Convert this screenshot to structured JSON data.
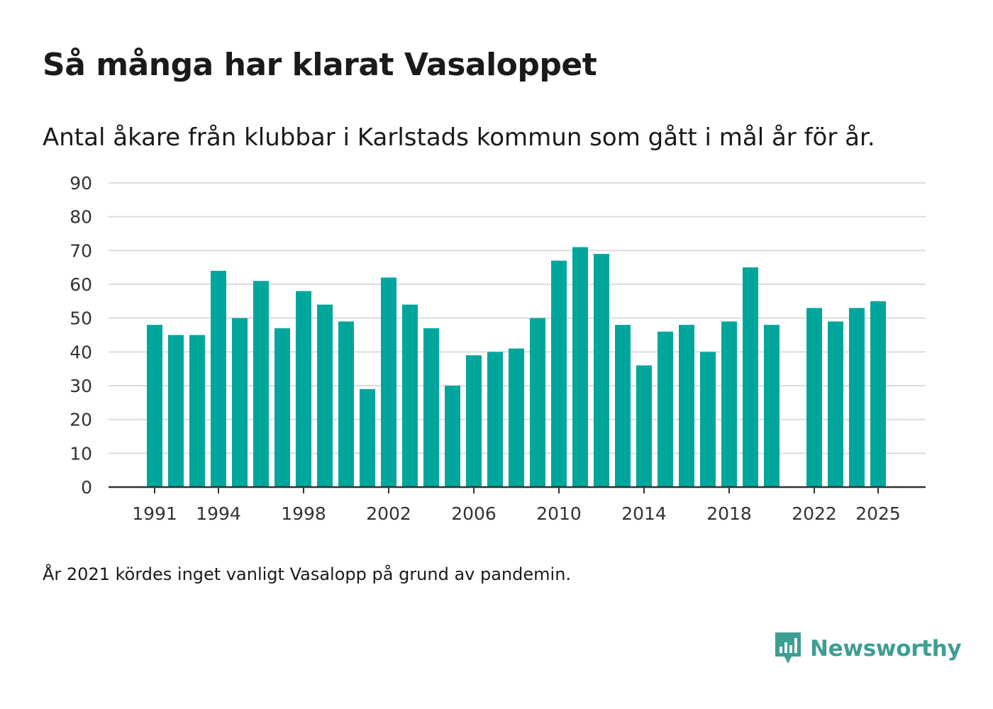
{
  "header": {
    "title": "Så många har klarat Vasaloppet",
    "subtitle": "Antal åkare från klubbar i Karlstads kommun som gått i mål år för år."
  },
  "footer": {
    "note": "År 2021 kördes inget vanligt Vasalopp på grund av pandemin."
  },
  "brand": {
    "name": "Newsworthy",
    "icon": "newsworthy-logo-icon",
    "color": "#3f9e93"
  },
  "colors": {
    "bar": "#00a69c",
    "grid": "#dcdcdc",
    "axis": "#333333",
    "text": "#333333"
  },
  "chart_data": {
    "type": "bar",
    "title": "Så många har klarat Vasaloppet",
    "xlabel": "",
    "ylabel": "",
    "x": [
      1991,
      1992,
      1993,
      1994,
      1995,
      1996,
      1997,
      1998,
      1999,
      2000,
      2001,
      2002,
      2003,
      2004,
      2005,
      2006,
      2007,
      2008,
      2009,
      2010,
      2011,
      2012,
      2013,
      2014,
      2015,
      2016,
      2017,
      2018,
      2019,
      2020,
      2021,
      2022,
      2023,
      2024,
      2025
    ],
    "values": [
      48,
      45,
      45,
      64,
      50,
      61,
      47,
      58,
      54,
      49,
      29,
      62,
      54,
      47,
      30,
      39,
      40,
      41,
      50,
      67,
      71,
      69,
      48,
      36,
      46,
      48,
      40,
      49,
      65,
      48,
      null,
      53,
      49,
      53,
      55
    ],
    "xticks": [
      1991,
      1994,
      1998,
      2002,
      2006,
      2010,
      2014,
      2018,
      2022,
      2025
    ],
    "yticks": [
      0,
      10,
      20,
      30,
      40,
      50,
      60,
      70,
      80,
      90
    ],
    "xlim": [
      1991,
      2025
    ],
    "ylim": [
      0,
      90
    ],
    "grid": true,
    "legend": "none"
  }
}
